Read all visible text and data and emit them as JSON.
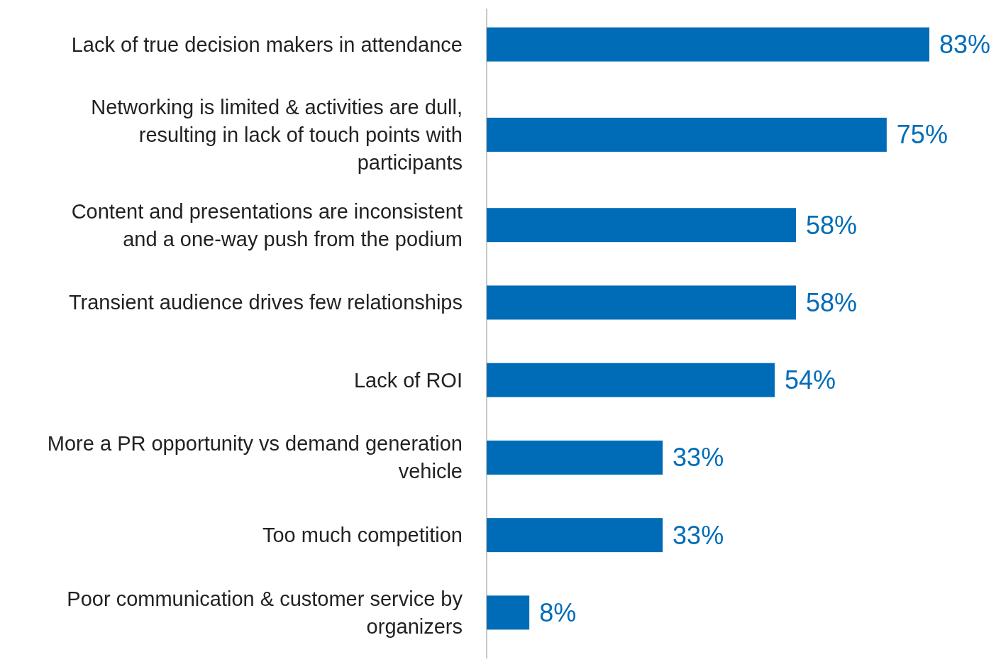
{
  "chart_data": {
    "type": "bar",
    "orientation": "horizontal",
    "categories": [
      "Lack of true decision makers in attendance",
      "Networking is limited & activities are dull, resulting in lack of touch points with participants",
      "Content and presentations are inconsistent and a one-way push from the podium",
      "Transient audience drives few relationships",
      "Lack of ROI",
      "More a PR opportunity vs demand generation vehicle",
      "Too much competition",
      "Poor communication & customer service by organizers"
    ],
    "values": [
      83,
      75,
      58,
      58,
      54,
      33,
      33,
      8
    ],
    "value_labels": [
      "83%",
      "75%",
      "58%",
      "58%",
      "54%",
      "33%",
      "33%",
      "8%"
    ],
    "color": "#006cb7"
  }
}
